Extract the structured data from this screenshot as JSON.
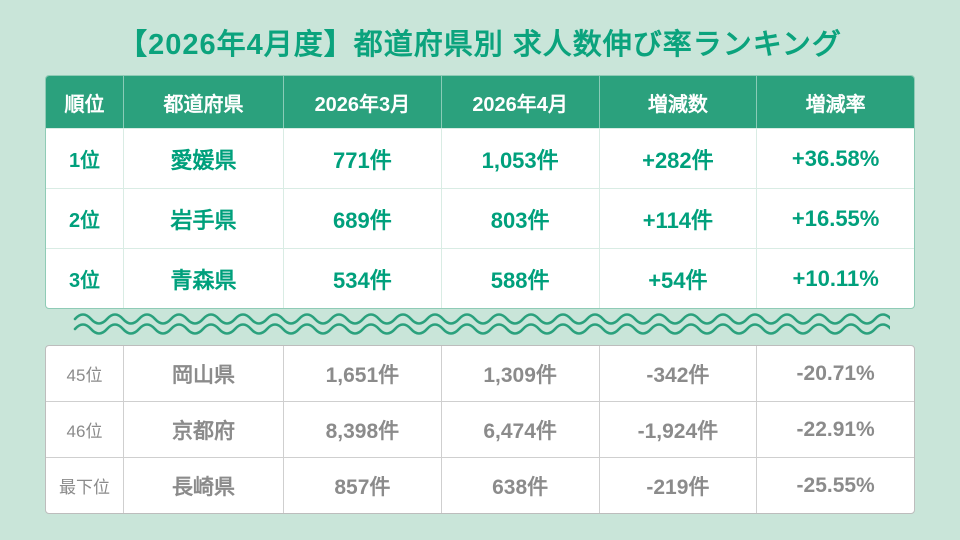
{
  "title": "【2026年4月度】都道府県別 求人数伸び率ランキング",
  "colors": {
    "background": "#c9e5d9",
    "accent_teal": "#0ba37d",
    "header_bg": "#2ba17d",
    "positive_text": "#00a07c",
    "negative_text": "#8b8b8b",
    "row_bg": "#ffffff"
  },
  "table": {
    "headers": [
      "順位",
      "都道府県",
      "2026年3月",
      "2026年4月",
      "増減数",
      "増減率"
    ],
    "top_rows": [
      {
        "rank": "1位",
        "pref": "愛媛県",
        "mar": "771件",
        "apr": "1,053件",
        "diff": "+282件",
        "rate": "+36.58%"
      },
      {
        "rank": "2位",
        "pref": "岩手県",
        "mar": "689件",
        "apr": "803件",
        "diff": "+114件",
        "rate": "+16.55%"
      },
      {
        "rank": "3位",
        "pref": "青森県",
        "mar": "534件",
        "apr": "588件",
        "diff": "+54件",
        "rate": "+10.11%"
      }
    ],
    "bottom_rows": [
      {
        "rank": "45位",
        "pref": "岡山県",
        "mar": "1,651件",
        "apr": "1,309件",
        "diff": "-342件",
        "rate": "-20.71%"
      },
      {
        "rank": "46位",
        "pref": "京都府",
        "mar": "8,398件",
        "apr": "6,474件",
        "diff": "-1,924件",
        "rate": "-22.91%"
      },
      {
        "rank": "最下位",
        "pref": "長崎県",
        "mar": "857件",
        "apr": "638件",
        "diff": "-219件",
        "rate": "-25.55%"
      }
    ]
  },
  "chart_data": {
    "type": "table",
    "title": "【2026年4月度】都道府県別 求人数伸び率ランキング",
    "columns": [
      "順位",
      "都道府県",
      "2026年3月",
      "2026年4月",
      "増減数",
      "増減率"
    ],
    "rows": [
      [
        "1位",
        "愛媛県",
        771,
        1053,
        282,
        36.58
      ],
      [
        "2位",
        "岩手県",
        689,
        803,
        114,
        16.55
      ],
      [
        "3位",
        "青森県",
        534,
        588,
        54,
        10.11
      ],
      [
        "45位",
        "岡山県",
        1651,
        1309,
        -342,
        -20.71
      ],
      [
        "46位",
        "京都府",
        8398,
        6474,
        -1924,
        -22.91
      ],
      [
        "最下位",
        "長崎県",
        857,
        638,
        -219,
        -25.55
      ]
    ],
    "notes": "Rows 1-3 shown in teal (increase), rows 45-47 shown in gray (decrease); middle ranks omitted with wavy divider"
  }
}
